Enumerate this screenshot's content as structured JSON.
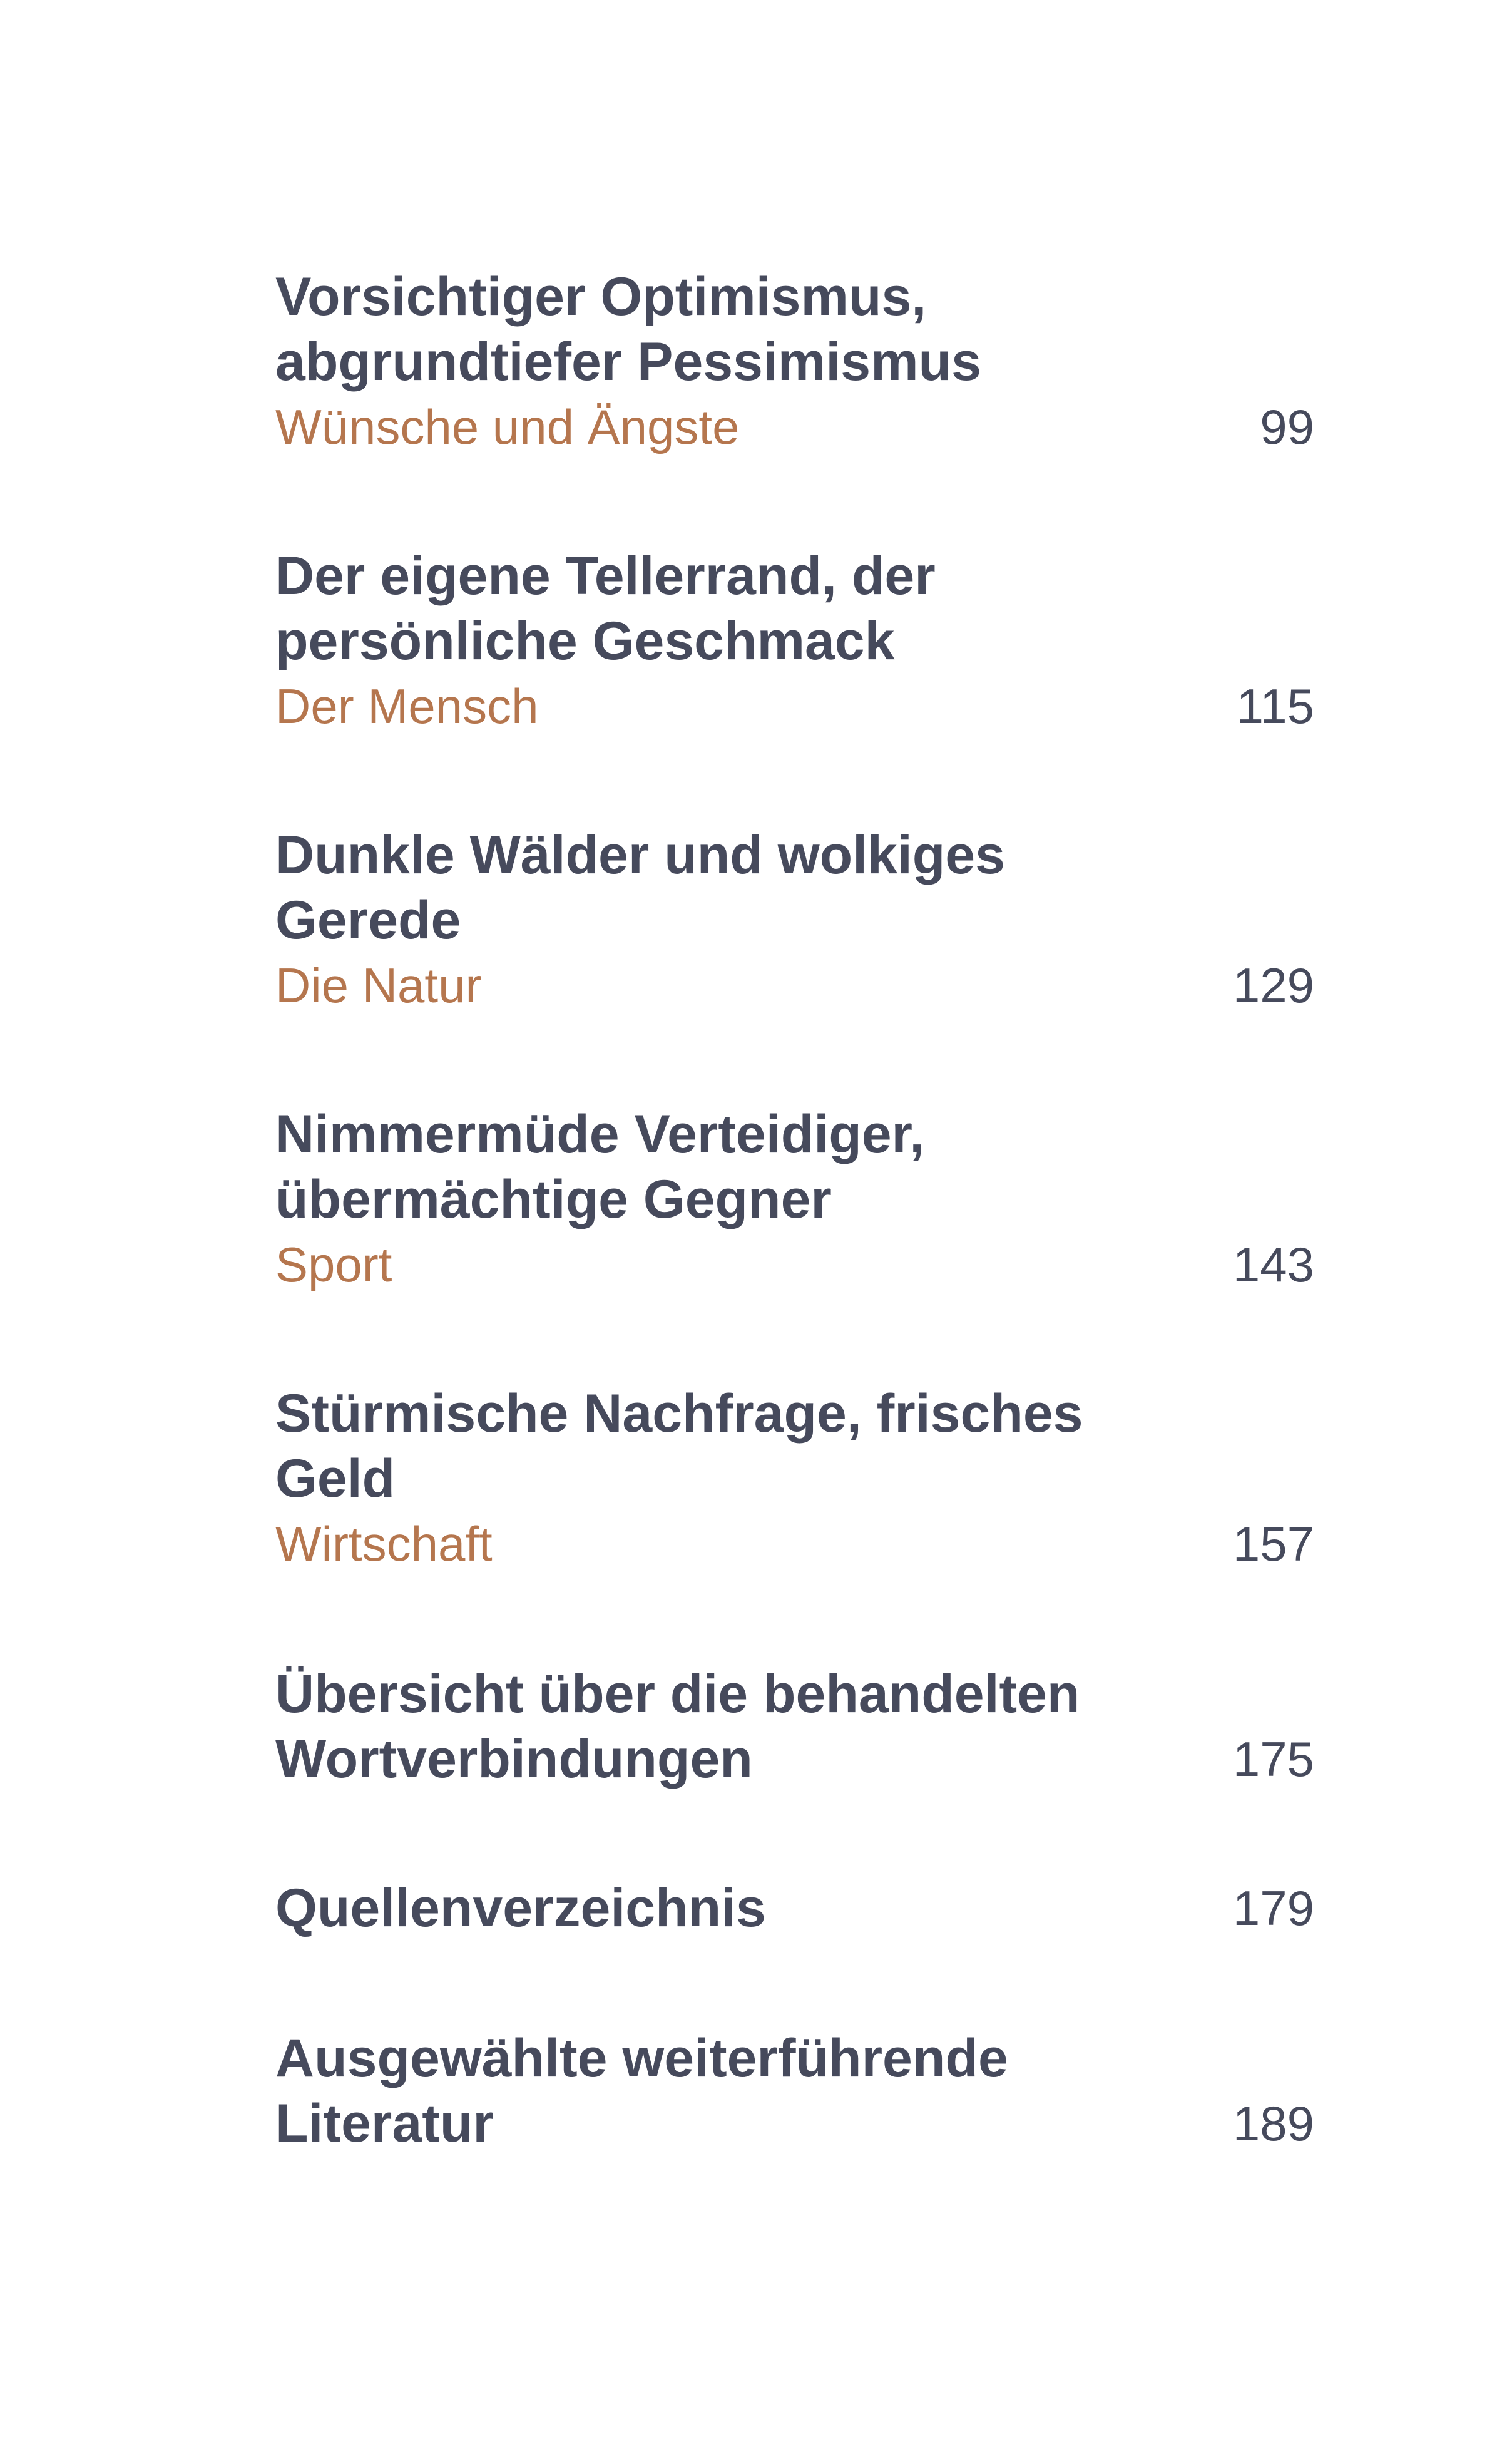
{
  "toc": {
    "entries": [
      {
        "title": "Vorsichtiger Optimismus,\nabgrundtiefer Pessimismus",
        "subtitle": "Wünsche und Ängste",
        "page": "99"
      },
      {
        "title": "Der eigene Tellerrand, der\npersönliche Geschmack",
        "subtitle": "Der Mensch",
        "page": "115"
      },
      {
        "title": "Dunkle Wälder und wolkiges\nGerede",
        "subtitle": "Die Natur",
        "page": "129"
      },
      {
        "title": "Nimmermüde Verteidiger,\nübermächtige Gegner",
        "subtitle": "Sport",
        "page": "143"
      },
      {
        "title": "Stürmische Nachfrage, frisches\nGeld",
        "subtitle": "Wirtschaft",
        "page": "157"
      },
      {
        "title": "Übersicht über die behandelten\nWortverbindungen",
        "page": "175"
      },
      {
        "title": "Quellenverzeichnis",
        "page": "179"
      },
      {
        "title": "Ausgewählte weiterführende\nLiteratur",
        "page": "189"
      }
    ]
  },
  "colors": {
    "heading": "#464a5c",
    "subtitle": "#b5764e"
  }
}
